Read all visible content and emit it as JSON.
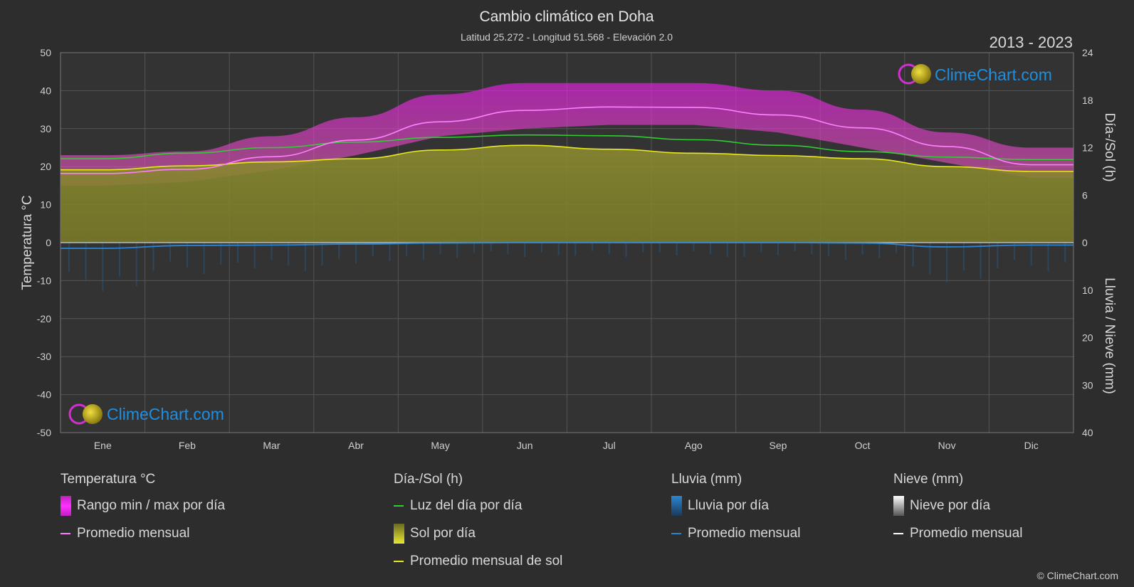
{
  "colors": {
    "background": "#2d2d2d",
    "plot_bg": "#333333",
    "grid": "#555555",
    "temp_range": "#c81ec8",
    "temp_avg": "#ff80ff",
    "daylight": "#33cc33",
    "sunshine_fill": "#8a8a2a",
    "sunshine_avg": "#e8e820",
    "rain": "#2a86d4",
    "snow": "#ffffff",
    "brand": "#1e8fe0"
  },
  "header": {
    "title": "Cambio climático en Doha",
    "subtitle": "Latitud 25.272 - Longitud 51.568 - Elevación 2.0",
    "years": "2013 - 2023"
  },
  "brand": {
    "name": "ClimeChart.com",
    "copyright": "© ClimeChart.com"
  },
  "axes": {
    "left_label": "Temperatura °C",
    "right_top_label": "Día-/Sol (h)",
    "right_bottom_label": "Lluvia / Nieve (mm)",
    "left_ticks": [
      "50",
      "40",
      "30",
      "20",
      "10",
      "0",
      "-10",
      "-20",
      "-30",
      "-40",
      "-50"
    ],
    "right_top_ticks": [
      "24",
      "18",
      "12",
      "6",
      "0"
    ],
    "right_bottom_ticks": [
      "10",
      "20",
      "30",
      "40"
    ]
  },
  "chart_data": {
    "type": "area",
    "categories": [
      "Ene",
      "Feb",
      "Mar",
      "Abr",
      "May",
      "Jun",
      "Jul",
      "Ago",
      "Sep",
      "Oct",
      "Nov",
      "Dic"
    ],
    "ylim_left": [
      -50,
      50
    ],
    "ylim_right_top": [
      0,
      24
    ],
    "ylim_right_bottom": [
      0,
      40
    ],
    "series": [
      {
        "name": "Rango min / max por día",
        "type": "band",
        "axis": "temperature",
        "min": [
          15,
          16,
          19,
          23,
          28,
          30,
          31,
          31,
          29,
          25,
          21,
          17
        ],
        "max": [
          23,
          24,
          28,
          33,
          39,
          42,
          42,
          42,
          40,
          35,
          29,
          25
        ]
      },
      {
        "name": "Promedio mensual",
        "type": "line",
        "axis": "temperature",
        "values": [
          18.2,
          19.3,
          22.6,
          27.0,
          31.8,
          34.8,
          35.7,
          35.6,
          33.6,
          30.2,
          25.3,
          20.5
        ]
      },
      {
        "name": "Luz del día por día",
        "type": "line",
        "axis": "hours",
        "values": [
          10.6,
          11.3,
          12.0,
          12.7,
          13.3,
          13.6,
          13.5,
          13.0,
          12.3,
          11.5,
          10.8,
          10.5
        ]
      },
      {
        "name": "Sol por día",
        "type": "area",
        "axis": "hours",
        "values": [
          9.2,
          9.7,
          10.2,
          10.6,
          11.7,
          12.3,
          11.8,
          11.3,
          11.0,
          10.6,
          9.6,
          9.0
        ]
      },
      {
        "name": "Promedio mensual de sol",
        "type": "line",
        "axis": "hours",
        "values": [
          9.2,
          9.7,
          10.2,
          10.6,
          11.7,
          12.3,
          11.8,
          11.3,
          11.0,
          10.6,
          9.6,
          9.0
        ]
      },
      {
        "name": "Promedio mensual",
        "type": "line",
        "axis": "precipitation",
        "values": [
          1.2,
          0.6,
          0.5,
          0.3,
          0.1,
          0.0,
          0.0,
          0.0,
          0.0,
          0.1,
          0.9,
          0.5
        ]
      }
    ]
  },
  "legend": {
    "groups": [
      {
        "title": "Temperatura °C",
        "items": [
          {
            "label": "Rango min / max por día",
            "kind": "box",
            "color": "#e020e0"
          },
          {
            "label": "Promedio mensual",
            "kind": "line",
            "color": "#ff80ff"
          }
        ]
      },
      {
        "title": "Día-/Sol (h)",
        "items": [
          {
            "label": "Luz del día por día",
            "kind": "line",
            "color": "#33cc33"
          },
          {
            "label": "Sol por día",
            "kind": "box",
            "color": "#d4d430"
          },
          {
            "label": "Promedio mensual de sol",
            "kind": "line",
            "color": "#e8e820"
          }
        ]
      },
      {
        "title": "Lluvia (mm)",
        "items": [
          {
            "label": "Lluvia por día",
            "kind": "box",
            "color": "#2a86d4"
          },
          {
            "label": "Promedio mensual",
            "kind": "line",
            "color": "#2a86d4"
          }
        ]
      },
      {
        "title": "Nieve (mm)",
        "items": [
          {
            "label": "Nieve por día",
            "kind": "box",
            "color": "#cccccc"
          },
          {
            "label": "Promedio mensual",
            "kind": "line",
            "color": "#ffffff"
          }
        ]
      }
    ]
  }
}
